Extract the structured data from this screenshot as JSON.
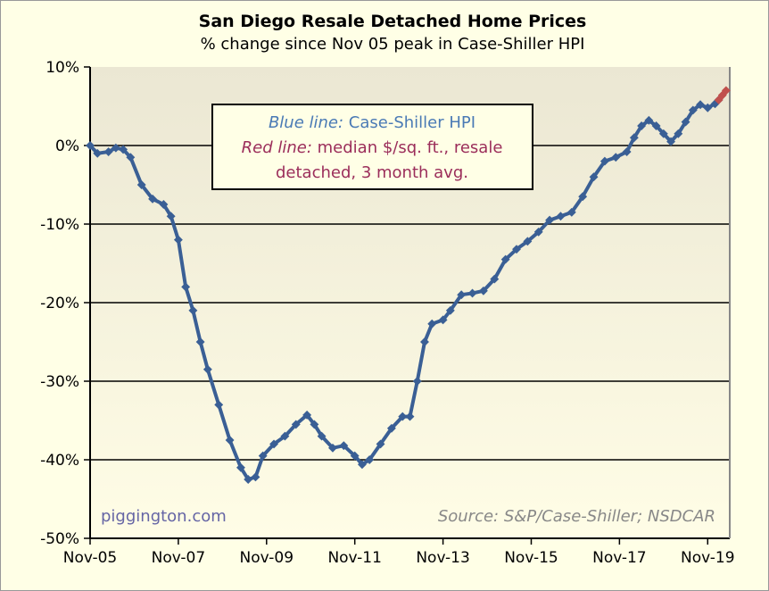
{
  "chart_data": {
    "type": "line",
    "title": "San Diego Resale Detached Home Prices",
    "subtitle": "% change since Nov 05 peak in Case-Shiller HPI",
    "x_ticks": [
      "Nov-05",
      "Nov-07",
      "Nov-09",
      "Nov-11",
      "Nov-13",
      "Nov-15",
      "Nov-17",
      "Nov-19"
    ],
    "y_ticks": [
      "10%",
      "0%",
      "-10%",
      "-20%",
      "-30%",
      "-40%",
      "-50%"
    ],
    "ylim": [
      -50,
      10
    ],
    "xlim": [
      "2005-11",
      "2020-05"
    ],
    "grid": true,
    "legend": {
      "placement": "top-center",
      "line1_label": "Blue line:",
      "line1_text": "Case-Shiller HPI",
      "line2_label": "Red line:",
      "line2_text": "median $/sq. ft., resale",
      "line3_text": "detached, 3 month avg."
    },
    "annotations": {
      "watermark": "piggington.com",
      "source": "Source: S&P/Case-Shiller; NSDCAR"
    },
    "colors": {
      "blue": "#3a5f95",
      "red": "#c0504d",
      "plot_top": "#ebe7d3",
      "plot_bottom": "#fffde6",
      "background": "#ffffe6"
    },
    "series": [
      {
        "color": "#3a5f95",
        "points": [
          [
            "2005-11",
            0
          ],
          [
            "2006-01",
            -1
          ],
          [
            "2006-04",
            -0.8
          ],
          [
            "2006-06",
            -0.3
          ],
          [
            "2006-08",
            -0.5
          ],
          [
            "2006-10",
            -1.5
          ],
          [
            "2007-01",
            -5
          ],
          [
            "2007-04",
            -6.8
          ],
          [
            "2007-07",
            -7.5
          ],
          [
            "2007-09",
            -9
          ],
          [
            "2007-11",
            -12
          ],
          [
            "2008-01",
            -18
          ],
          [
            "2008-03",
            -21
          ],
          [
            "2008-05",
            -25
          ],
          [
            "2008-07",
            -28.5
          ],
          [
            "2008-10",
            -33
          ],
          [
            "2009-01",
            -37.5
          ],
          [
            "2009-04",
            -41
          ],
          [
            "2009-06",
            -42.5
          ],
          [
            "2009-08",
            -42.2
          ],
          [
            "2009-10",
            -39.5
          ],
          [
            "2010-01",
            -38
          ],
          [
            "2010-04",
            -37
          ],
          [
            "2010-07",
            -35.5
          ],
          [
            "2010-10",
            -34.3
          ],
          [
            "2010-12",
            -35.5
          ],
          [
            "2011-02",
            -37
          ],
          [
            "2011-05",
            -38.5
          ],
          [
            "2011-08",
            -38.2
          ],
          [
            "2011-11",
            -39.5
          ],
          [
            "2012-01",
            -40.6
          ],
          [
            "2012-03",
            -40
          ],
          [
            "2012-06",
            -38
          ],
          [
            "2012-09",
            -36
          ],
          [
            "2012-12",
            -34.5
          ],
          [
            "2013-02",
            -34.5
          ],
          [
            "2013-04",
            -30
          ],
          [
            "2013-06",
            -25
          ],
          [
            "2013-08",
            -22.7
          ],
          [
            "2013-11",
            -22.2
          ],
          [
            "2014-01",
            -21
          ],
          [
            "2014-04",
            -19
          ],
          [
            "2014-07",
            -18.8
          ],
          [
            "2014-10",
            -18.5
          ],
          [
            "2015-01",
            -17
          ],
          [
            "2015-04",
            -14.5
          ],
          [
            "2015-07",
            -13.2
          ],
          [
            "2015-10",
            -12.2
          ],
          [
            "2016-01",
            -11
          ],
          [
            "2016-04",
            -9.5
          ],
          [
            "2016-07",
            -9
          ],
          [
            "2016-10",
            -8.5
          ],
          [
            "2017-01",
            -6.5
          ],
          [
            "2017-04",
            -4
          ],
          [
            "2017-07",
            -2
          ],
          [
            "2017-10",
            -1.5
          ],
          [
            "2018-01",
            -0.8
          ],
          [
            "2018-03",
            1
          ],
          [
            "2018-05",
            2.5
          ],
          [
            "2018-07",
            3.2
          ],
          [
            "2018-09",
            2.5
          ],
          [
            "2018-11",
            1.5
          ],
          [
            "2019-01",
            0.5
          ],
          [
            "2019-03",
            1.5
          ],
          [
            "2019-05",
            3
          ],
          [
            "2019-07",
            4.5
          ],
          [
            "2019-09",
            5.2
          ],
          [
            "2019-11",
            4.8
          ],
          [
            "2020-01",
            5.3
          ],
          [
            "2020-02",
            5.8
          ]
        ]
      },
      {
        "color": "#c0504d",
        "points": [
          [
            "2020-02",
            5.8
          ],
          [
            "2020-03",
            6.4
          ],
          [
            "2020-04",
            7.0
          ]
        ]
      }
    ]
  }
}
